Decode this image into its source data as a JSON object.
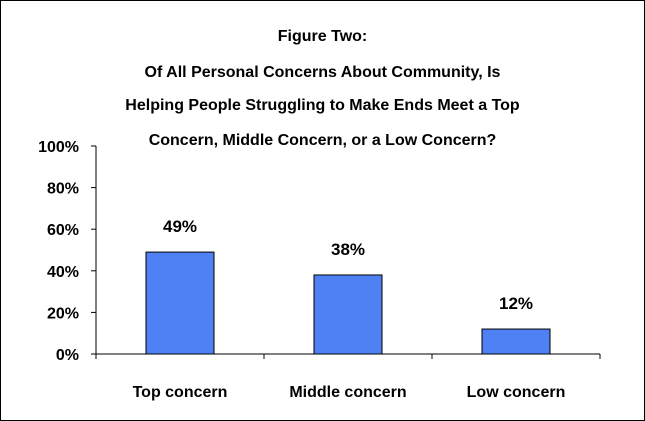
{
  "chart_data": {
    "type": "bar",
    "title_lines": [
      "Figure Two:",
      "Of All Personal Concerns About Community, Is",
      "Helping People Struggling to Make Ends Meet a Top",
      "Concern, Middle Concern, or a Low Concern?"
    ],
    "categories": [
      "Top concern",
      "Middle concern",
      "Low concern"
    ],
    "values": [
      49,
      38,
      12
    ],
    "data_labels": [
      "49%",
      "38%",
      "12%"
    ],
    "y_ticks": [
      0,
      20,
      40,
      60,
      80,
      100
    ],
    "y_tick_labels": [
      "0%",
      "20%",
      "40%",
      "60%",
      "80%",
      "100%"
    ],
    "ylim": [
      0,
      100
    ],
    "xlabel": "",
    "ylabel": "",
    "grid": false,
    "legend": "none",
    "bar_color": "#4f81f5",
    "bar_edge_color": "#000000"
  }
}
